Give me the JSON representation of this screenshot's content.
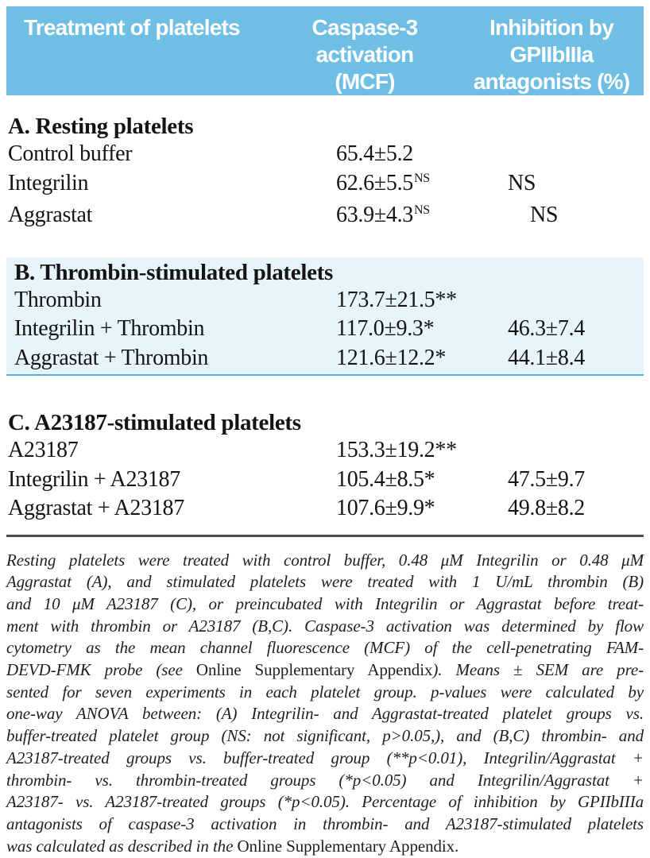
{
  "colors": {
    "header_bg": "#6fbee3",
    "header_text": "#ffffff",
    "highlight_bg": "#e7f5fb",
    "highlight_border": "#56b5dc",
    "rule": "#4d4d4d",
    "body_text": "#141414",
    "footnote_text": "#1f1f1f"
  },
  "table": {
    "header": {
      "col1": "Treatment of platelets",
      "col2": [
        "Caspase-3 activation",
        "(MCF)"
      ],
      "col3": [
        "Inhibition by",
        "GPIIbIIIa",
        "antagonists (%)"
      ]
    },
    "sections": [
      {
        "id": "a",
        "title": "A. Resting platelets",
        "highlighted": false,
        "rows": [
          {
            "label": "Control buffer",
            "mcf": "65.4±5.2",
            "mcf_sup": "",
            "inhibition": "",
            "inhibition_indent": 0
          },
          {
            "label": "Integrilin",
            "mcf": "62.6±5.5",
            "mcf_sup": "NS",
            "inhibition": "NS",
            "inhibition_indent": 0
          },
          {
            "label": "Aggrastat",
            "mcf": "63.9±4.3",
            "mcf_sup": "NS",
            "inhibition": "NS",
            "inhibition_indent": 28
          }
        ]
      },
      {
        "id": "b",
        "title": "B. Thrombin-stimulated platelets",
        "highlighted": true,
        "rows": [
          {
            "label": "Thrombin",
            "mcf": "173.7±21.5**",
            "mcf_sup": "",
            "inhibition": "",
            "inhibition_indent": 0
          },
          {
            "label": "Integrilin + Thrombin",
            "mcf": "117.0±9.3*",
            "mcf_sup": "",
            "inhibition": "46.3±7.4",
            "inhibition_indent": 0
          },
          {
            "label": "Aggrastat + Thrombin",
            "mcf": "121.6±12.2*",
            "mcf_sup": "",
            "inhibition": "44.1±8.4",
            "inhibition_indent": 0
          }
        ]
      },
      {
        "id": "c",
        "title": "C. A23187-stimulated platelets",
        "highlighted": false,
        "rows": [
          {
            "label": "A23187",
            "mcf": "153.3±19.2**",
            "mcf_sup": "",
            "inhibition": "",
            "inhibition_indent": 0
          },
          {
            "label": "Integrilin + A23187",
            "mcf": "105.4±8.5*",
            "mcf_sup": "",
            "inhibition": "47.5±9.7",
            "inhibition_indent": 0
          },
          {
            "label": "Aggrastat + A23187",
            "mcf": "107.6±9.9*",
            "mcf_sup": "",
            "inhibition": "49.8±8.2",
            "inhibition_indent": 0
          }
        ]
      }
    ]
  },
  "footnote": {
    "lines": [
      [
        {
          "style": "italic",
          "text": "Resting platelets were treated with control buffer, 0.48 μM Integrilin or 0.48 μM"
        }
      ],
      [
        {
          "style": "italic",
          "text": "Aggrastat (A), and stimulated platelets were treated with 1 U/mL thrombin (B)"
        }
      ],
      [
        {
          "style": "italic",
          "text": "and 10 μM A23187 (C), or preincubated with Integrilin or Aggrastat before treat-"
        }
      ],
      [
        {
          "style": "italic",
          "text": "ment with thrombin or A23187 (B,C). Caspase-3 activation was determined by flow"
        }
      ],
      [
        {
          "style": "italic",
          "text": "cytometry as the mean channel fluorescence (MCF) of the cell-penetrating FAM-"
        }
      ],
      [
        {
          "style": "italic",
          "text": "DEVD-FMK probe (see "
        },
        {
          "style": "roman",
          "text": "Online Supplementary Appendix"
        },
        {
          "style": "italic",
          "text": "). Means ± SEM are pre-"
        }
      ],
      [
        {
          "style": "italic",
          "text": "sented for seven experiments in each platelet group. p-values were calculated by"
        }
      ],
      [
        {
          "style": "italic",
          "text": "one-way ANOVA between: (A) Integrilin- and Aggrastat-treated platelet groups vs."
        }
      ],
      [
        {
          "style": "italic",
          "text": "buffer-treated platelet group (NS: not significant, p>0.05,), and (B,C) thrombin- and"
        }
      ],
      [
        {
          "style": "italic",
          "text": "A23187-treated groups vs. buffer-treated group (**p<0.01), Integrilin/Aggrastat +"
        }
      ],
      [
        {
          "style": "italic",
          "text": "thrombin- vs. thrombin-treated groups (*p<0.05) and Integrilin/Aggrastat +"
        }
      ],
      [
        {
          "style": "italic",
          "text": "A23187- vs. A23187-treated groups (*p<0.05). Percentage of inhibition by GPIIbIIIa"
        }
      ],
      [
        {
          "style": "italic",
          "text": "antagonists of caspase-3 activation in thrombin- and A23187-stimulated platelets"
        }
      ],
      [
        {
          "style": "italic",
          "text": "was calculated as described in the "
        },
        {
          "style": "roman",
          "text": "Online Supplementary Appendix."
        }
      ]
    ]
  }
}
